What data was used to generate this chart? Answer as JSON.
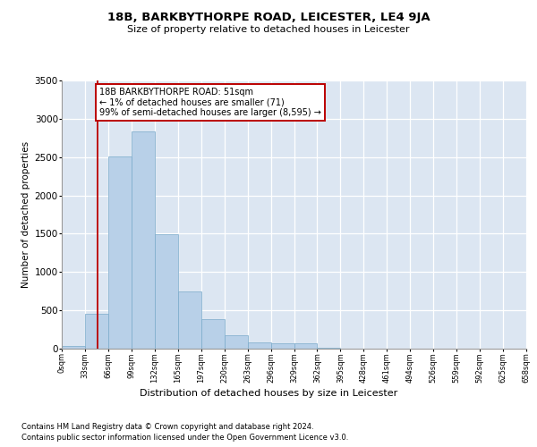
{
  "title": "18B, BARKBYTHORPE ROAD, LEICESTER, LE4 9JA",
  "subtitle": "Size of property relative to detached houses in Leicester",
  "xlabel": "Distribution of detached houses by size in Leicester",
  "ylabel": "Number of detached properties",
  "bar_color": "#b8d0e8",
  "bar_edge_color": "#7aaaca",
  "background_color": "#dce6f2",
  "vline_color": "#bb0000",
  "vline_x": 1.545,
  "annotation_text": "18B BARKBYTHORPE ROAD: 51sqm\n← 1% of detached houses are smaller (71)\n99% of semi-detached houses are larger (8,595) →",
  "footer_line1": "Contains HM Land Registry data © Crown copyright and database right 2024.",
  "footer_line2": "Contains public sector information licensed under the Open Government Licence v3.0.",
  "bin_labels": [
    "0sqm",
    "33sqm",
    "66sqm",
    "99sqm",
    "132sqm",
    "165sqm",
    "197sqm",
    "230sqm",
    "263sqm",
    "296sqm",
    "329sqm",
    "362sqm",
    "395sqm",
    "428sqm",
    "461sqm",
    "494sqm",
    "526sqm",
    "559sqm",
    "592sqm",
    "625sqm",
    "658sqm"
  ],
  "bar_heights": [
    30,
    460,
    2510,
    2840,
    1490,
    750,
    380,
    170,
    85,
    65,
    75,
    15,
    5,
    0,
    0,
    0,
    0,
    0,
    0,
    0
  ],
  "ylim": [
    0,
    3500
  ],
  "yticks": [
    0,
    500,
    1000,
    1500,
    2000,
    2500,
    3000,
    3500
  ],
  "num_bins": 20
}
